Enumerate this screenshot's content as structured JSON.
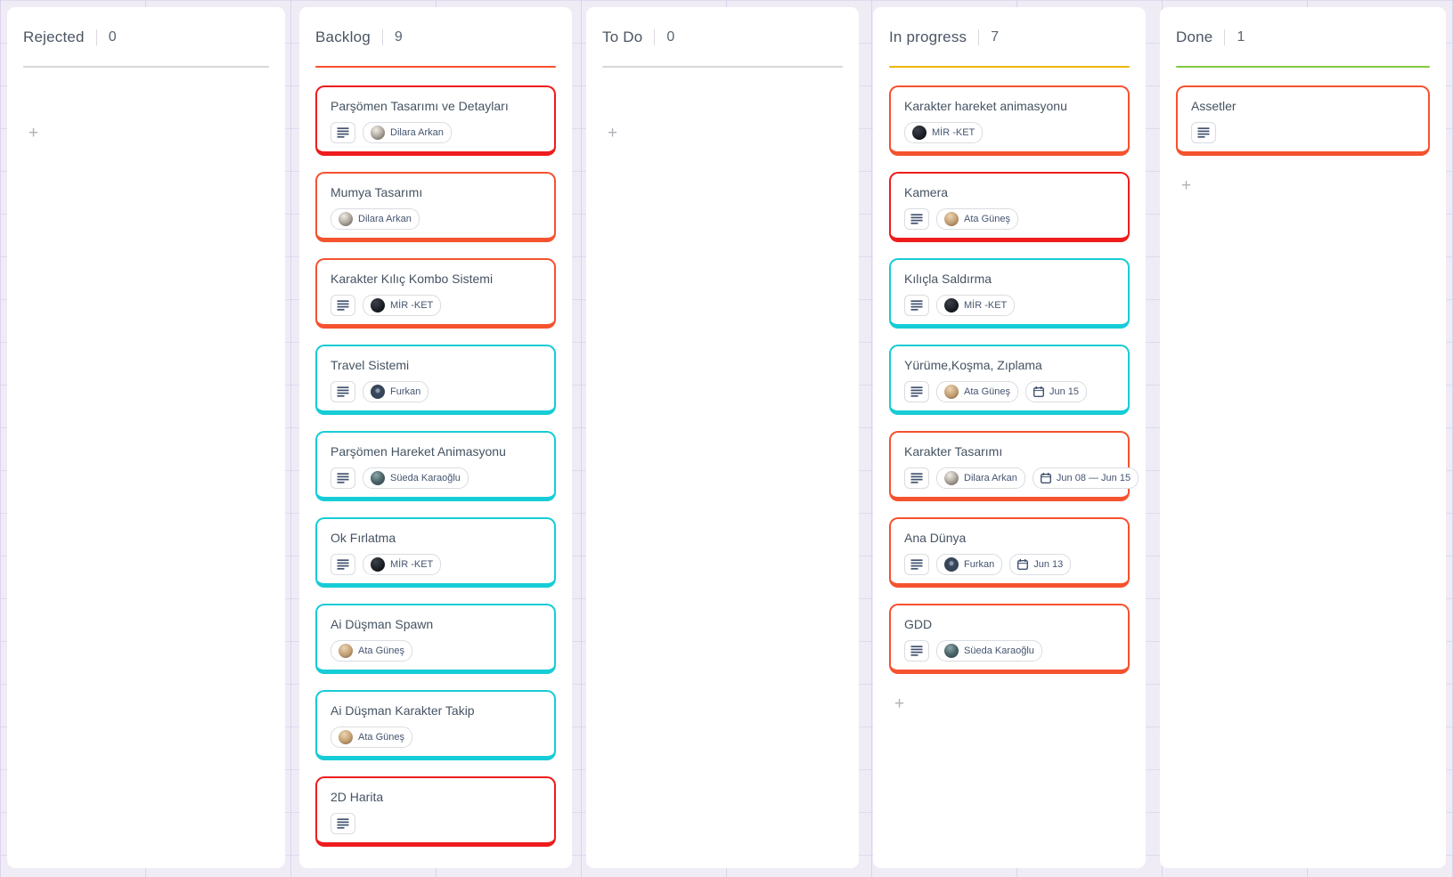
{
  "board": {
    "columns": [
      {
        "id": "rejected",
        "title": "Rejected",
        "count": "0",
        "accent_color": "#d7d7d7",
        "add_card_label": "+",
        "cards": []
      },
      {
        "id": "backlog",
        "title": "Backlog",
        "count": "9",
        "accent_color": "#f5522e",
        "add_card_label": "+",
        "cards": [
          {
            "title": "Parşömen Tasarımı ve Detayları",
            "border_color": "#ee1c1c",
            "has_description": true,
            "assignee": "Dilara Arkan",
            "avatar": "dilara",
            "due": null
          },
          {
            "title": "Mumya Tasarımı",
            "border_color": "#f5522e",
            "has_description": false,
            "assignee": "Dilara Arkan",
            "avatar": "dilara",
            "due": null
          },
          {
            "title": "Karakter Kılıç Kombo Sistemi",
            "border_color": "#f5522e",
            "has_description": true,
            "assignee": "MİR -KET",
            "avatar": "mirket",
            "due": null
          },
          {
            "title": "Travel Sistemi",
            "border_color": "#16ccd6",
            "has_description": true,
            "assignee": "Furkan",
            "avatar": "furkan",
            "due": null
          },
          {
            "title": "Parşömen Hareket Animasyonu",
            "border_color": "#16ccd6",
            "has_description": true,
            "assignee": "Süeda Karaoğlu",
            "avatar": "sueda",
            "due": null
          },
          {
            "title": "Ok Fırlatma",
            "border_color": "#16ccd6",
            "has_description": true,
            "assignee": "MİR -KET",
            "avatar": "mirket",
            "due": null
          },
          {
            "title": "Ai Düşman Spawn",
            "border_color": "#16ccd6",
            "has_description": false,
            "assignee": "Ata Güneş",
            "avatar": "ata",
            "due": null
          },
          {
            "title": "Ai Düşman Karakter Takip",
            "border_color": "#16ccd6",
            "has_description": false,
            "assignee": "Ata Güneş",
            "avatar": "ata",
            "due": null
          },
          {
            "title": "2D Harita",
            "border_color": "#ee1c1c",
            "has_description": true,
            "assignee": null,
            "avatar": null,
            "due": null
          }
        ]
      },
      {
        "id": "todo",
        "title": "To Do",
        "count": "0",
        "accent_color": "#d7d7d7",
        "add_card_label": "+",
        "cards": []
      },
      {
        "id": "inprogress",
        "title": "In progress",
        "count": "7",
        "accent_color": "#f0b400",
        "add_card_label": "+",
        "cards": [
          {
            "title": "Karakter hareket animasyonu",
            "border_color": "#f5522e",
            "has_description": false,
            "assignee": "MİR -KET",
            "avatar": "mirket",
            "due": null
          },
          {
            "title": "Kamera",
            "border_color": "#ee1c1c",
            "has_description": true,
            "assignee": "Ata Güneş",
            "avatar": "ata",
            "due": null
          },
          {
            "title": "Kılıçla Saldırma",
            "border_color": "#16ccd6",
            "has_description": true,
            "assignee": "MİR -KET",
            "avatar": "mirket",
            "due": null
          },
          {
            "title": "Yürüme,Koşma, Zıplama",
            "border_color": "#16ccd6",
            "has_description": true,
            "assignee": "Ata Güneş",
            "avatar": "ata",
            "due": "Jun 15"
          },
          {
            "title": "Karakter Tasarımı",
            "border_color": "#f5522e",
            "has_description": true,
            "assignee": "Dilara Arkan",
            "avatar": "dilara",
            "due": "Jun 08 — Jun 15"
          },
          {
            "title": "Ana Dünya",
            "border_color": "#f5522e",
            "has_description": true,
            "assignee": "Furkan",
            "avatar": "furkan",
            "due": "Jun 13"
          },
          {
            "title": "GDD",
            "border_color": "#f5522e",
            "has_description": true,
            "assignee": "Süeda Karaoğlu",
            "avatar": "sueda",
            "due": null
          }
        ]
      },
      {
        "id": "done",
        "title": "Done",
        "count": "1",
        "accent_color": "#7ecb3f",
        "add_card_label": "+",
        "cards": [
          {
            "title": "Assetler",
            "border_color": "#f5522e",
            "has_description": true,
            "assignee": null,
            "avatar": null,
            "due": null
          }
        ]
      }
    ]
  }
}
